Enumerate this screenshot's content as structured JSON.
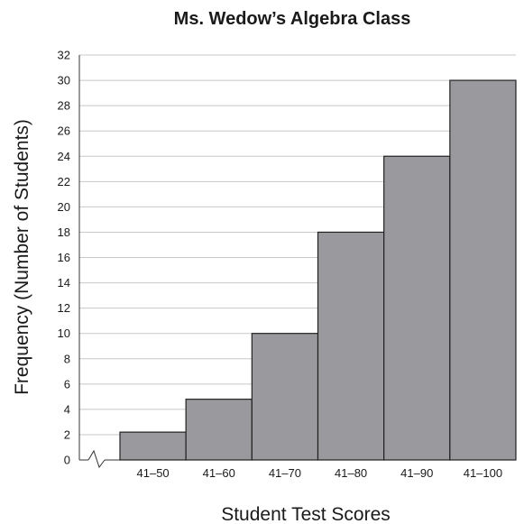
{
  "chart_data": {
    "type": "bar",
    "title": "Ms. Wedow’s Algebra Class",
    "xlabel": "Student Test Scores",
    "ylabel": "Frequency (Number of Students)",
    "categories": [
      "41–50",
      "41–60",
      "41–70",
      "41–80",
      "41–90",
      "41–100"
    ],
    "values": [
      2.2,
      4.8,
      10,
      18,
      24,
      30
    ],
    "ylim": [
      0,
      32
    ],
    "yticks": [
      "0",
      "2",
      "4",
      "6",
      "8",
      "10",
      "12",
      "14",
      "16",
      "18",
      "20",
      "22",
      "24",
      "26",
      "28",
      "30",
      "32"
    ],
    "grid": true,
    "axis_break": true,
    "colors": {
      "bar_fill": "#9a9a9e",
      "bar_stroke": "#222222",
      "grid": "#c8c8c8"
    }
  }
}
